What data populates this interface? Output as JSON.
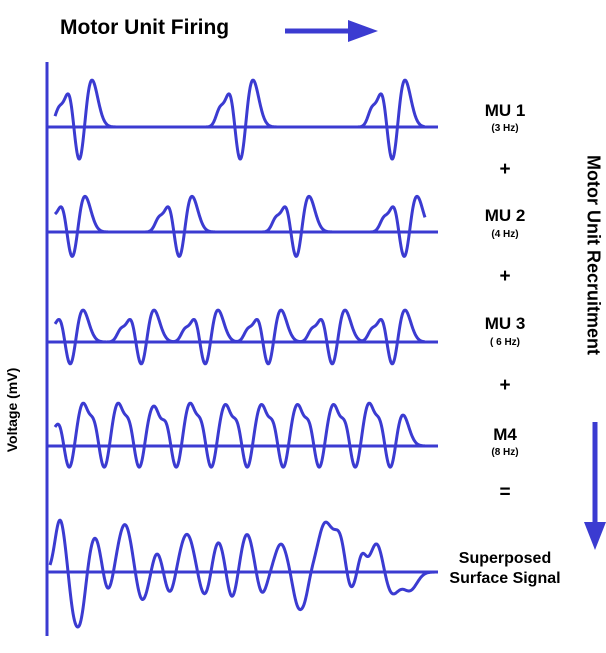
{
  "title": "Motor Unit Firing",
  "y_axis_label": "Voltage (mV)",
  "right_axis_label": "Motor Unit Recruitment",
  "stroke_color": "#3b3bd1",
  "motor_units": [
    {
      "name": "MU 1",
      "freq": "(3 Hz)"
    },
    {
      "name": "MU 2",
      "freq": "(4 Hz)"
    },
    {
      "name": "MU 3",
      "freq": "( 6 Hz)"
    },
    {
      "name": "M4",
      "freq": "(8 Hz)"
    }
  ],
  "operators": [
    "+",
    "+",
    "+",
    "="
  ],
  "sum_label_line1": "Superposed",
  "sum_label_line2": "Surface Signal"
}
